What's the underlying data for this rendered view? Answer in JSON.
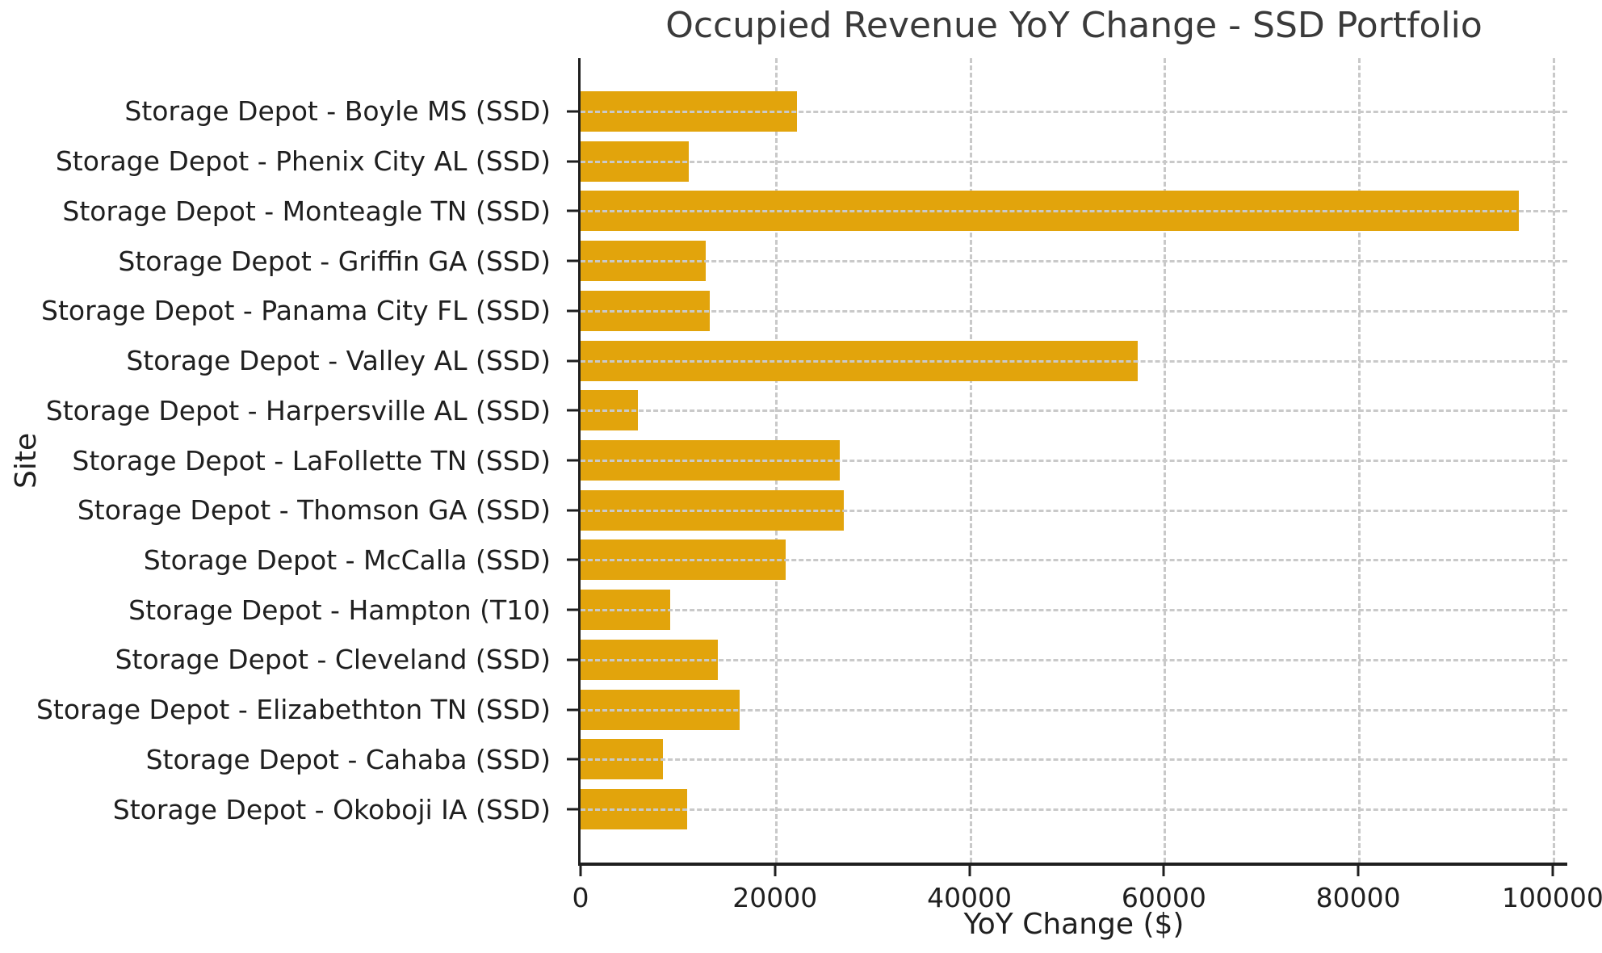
{
  "chart_data": {
    "type": "bar",
    "orientation": "horizontal",
    "title": "Occupied Revenue YoY Change - SSD Portfolio",
    "xlabel": "YoY Change ($)",
    "ylabel": "Site",
    "categories": [
      "Storage Depot - Boyle MS (SSD)",
      "Storage Depot - Phenix City AL (SSD)",
      "Storage Depot - Monteagle TN (SSD)",
      "Storage Depot - Griffin GA (SSD)",
      "Storage Depot - Panama City FL (SSD)",
      "Storage Depot - Valley AL (SSD)",
      "Storage Depot - Harpersville AL (SSD)",
      "Storage Depot - LaFollette TN (SSD)",
      "Storage Depot - Thomson GA (SSD)",
      "Storage Depot - McCalla (SSD)",
      "Storage Depot - Hampton (T10)",
      "Storage Depot - Cleveland (SSD)",
      "Storage Depot - Elizabethton TN (SSD)",
      "Storage Depot - Cahaba (SSD)",
      "Storage Depot - Okoboji IA (SSD)"
    ],
    "values": [
      22300,
      11100,
      96500,
      12900,
      13300,
      57300,
      5900,
      26700,
      27100,
      21100,
      9200,
      14100,
      16400,
      8500,
      11000
    ],
    "x_ticks": [
      0,
      20000,
      40000,
      60000,
      80000,
      100000
    ],
    "xlim": [
      0,
      101500
    ],
    "grid": "dashed",
    "legend": "none",
    "bar_color": "#e2a40c"
  }
}
